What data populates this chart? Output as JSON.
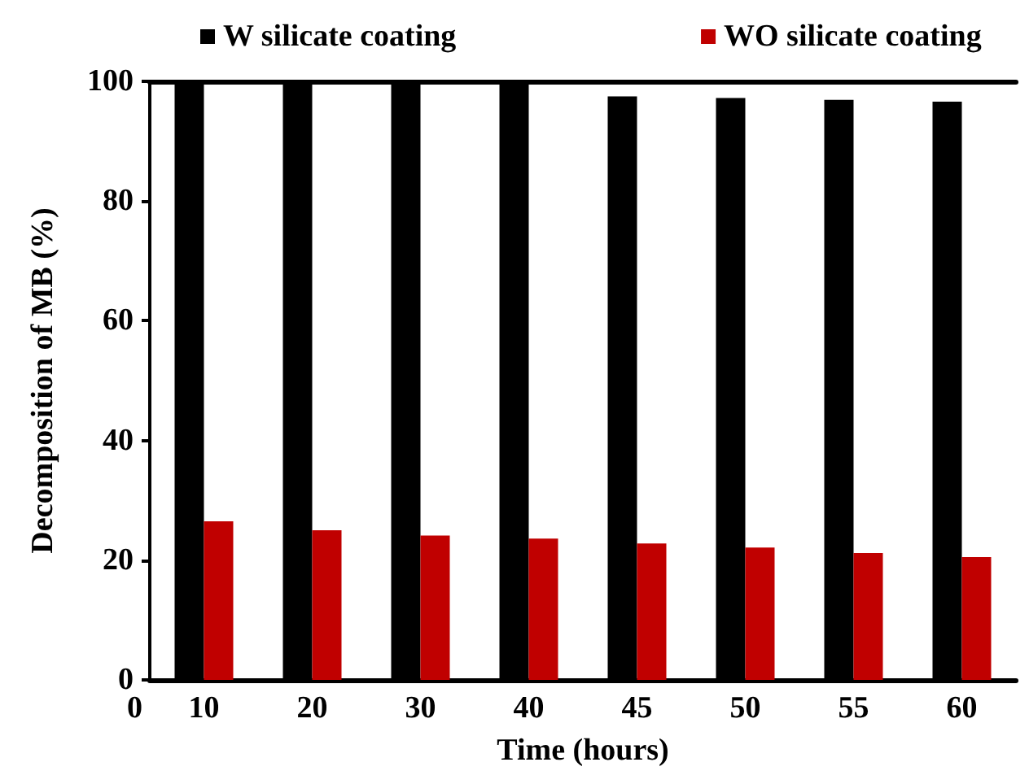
{
  "chart_data": {
    "type": "bar",
    "xlabel": "Time (hours)",
    "ylabel": "Decomposition of MB (%)",
    "categories": [
      "10",
      "20",
      "30",
      "40",
      "45",
      "50",
      "55",
      "60"
    ],
    "series": [
      {
        "name": "W silicate coating",
        "color": "#000000",
        "values": [
          100,
          100,
          100,
          100,
          97.5,
          97.2,
          96.9,
          96.6
        ]
      },
      {
        "name": "WO silicate coating",
        "color": "#c00000",
        "values": [
          26.5,
          25.0,
          24.1,
          23.6,
          22.8,
          22.1,
          21.2,
          20.5
        ]
      }
    ],
    "ylim": [
      0,
      100
    ],
    "yticks": [
      0,
      20,
      40,
      60,
      80,
      100
    ],
    "grid": false,
    "legend": "top",
    "annotations": [
      "0"
    ]
  }
}
